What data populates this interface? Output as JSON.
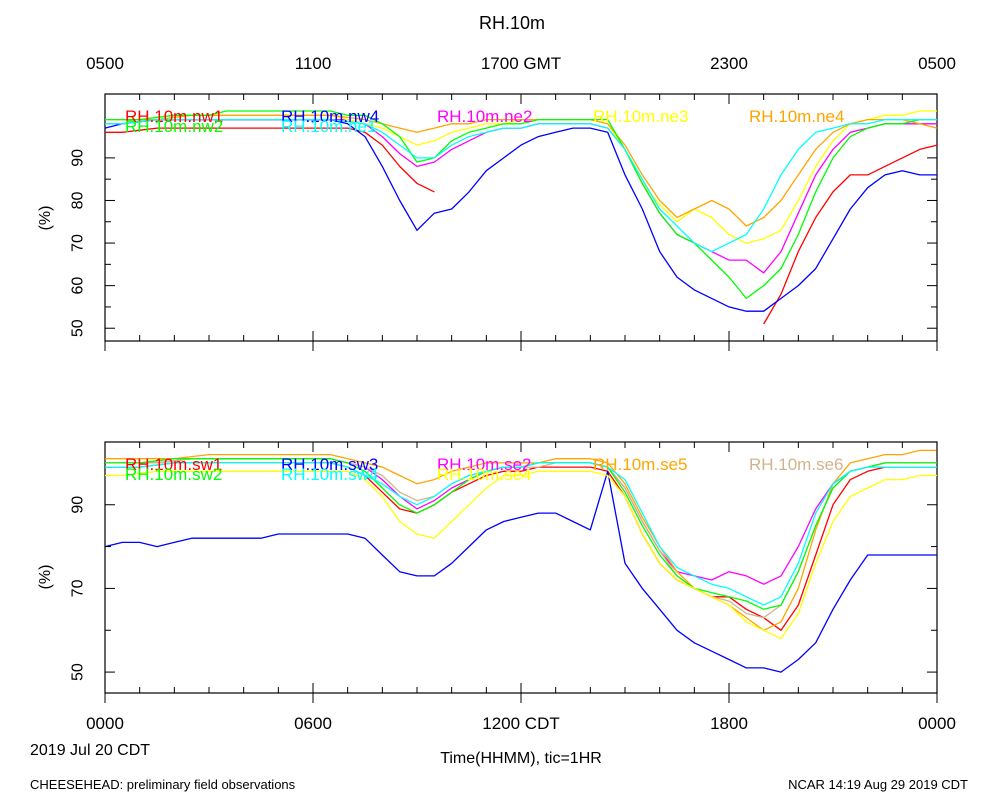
{
  "title": "RH.10m",
  "top_time_labels": [
    "0500",
    "1100",
    "1700 GMT",
    "2300",
    "0500"
  ],
  "bottom_time_labels": [
    "0000",
    "0600",
    "1200 CDT",
    "1800",
    "0000"
  ],
  "xlabel": "Time(HHMM), tic=1HR",
  "date_label": "2019 Jul 20 CDT",
  "footer_left": "CHEESEHEAD: preliminary field observations",
  "footer_right": "NCAR 14:19 Aug 29 2019 CDT",
  "chart_data": [
    {
      "type": "line",
      "panel": "top",
      "ylabel": "(%)",
      "x_unit": "hours since 0000 CDT",
      "xlim": [
        0,
        24
      ],
      "ylim": [
        47,
        105
      ],
      "yticks": [
        50,
        60,
        70,
        80,
        90
      ],
      "grid": false,
      "legend_placement": "top, inside plot",
      "x": [
        0,
        0.5,
        1,
        1.5,
        2,
        2.5,
        3,
        3.5,
        4,
        4.5,
        5,
        5.5,
        6,
        6.5,
        7,
        7.5,
        8,
        8.5,
        9,
        9.5,
        10,
        10.5,
        11,
        11.5,
        12,
        12.5,
        13,
        13.5,
        14,
        14.5,
        15,
        15.5,
        16,
        16.5,
        17,
        17.5,
        18,
        18.5,
        19,
        19.5,
        20,
        20.5,
        21,
        21.5,
        22,
        22.5,
        23,
        23.5,
        24
      ],
      "series": [
        {
          "name": "RH.10m.nw1",
          "color": "#ff0000",
          "legend_row": 0,
          "values": [
            96,
            96,
            96.5,
            97,
            97,
            97,
            97,
            97,
            97,
            97,
            97,
            97,
            97,
            97,
            97,
            96,
            93,
            88,
            84,
            82,
            null,
            null,
            null,
            null,
            null,
            null,
            null,
            null,
            null,
            null,
            null,
            null,
            null,
            null,
            null,
            null,
            null,
            null,
            51,
            58,
            68,
            76,
            82,
            86,
            86,
            88,
            90,
            92,
            93
          ]
        },
        {
          "name": "RH.10m.nw4",
          "color": "#0000ff",
          "legend_row": 0,
          "values": [
            97,
            98,
            98.5,
            99,
            99,
            99,
            99,
            99,
            99,
            99,
            99,
            99,
            99,
            99,
            98,
            95,
            88,
            80,
            73,
            77,
            78,
            82,
            87,
            90,
            93,
            95,
            96,
            97,
            97,
            96,
            86,
            78,
            68,
            62,
            59,
            57,
            55,
            54,
            54,
            57,
            60,
            64,
            71,
            78,
            83,
            86,
            87,
            86,
            86
          ]
        },
        {
          "name": "RH.10m.ne2",
          "color": "#ff00ff",
          "legend_row": 0,
          "values": [
            98,
            98,
            98.5,
            99,
            99,
            99,
            99,
            99,
            99,
            99,
            99,
            99,
            99,
            99,
            99,
            98,
            95,
            91,
            88,
            89,
            92,
            94,
            96,
            97,
            97,
            98,
            98,
            98,
            98,
            97,
            92,
            84,
            77,
            72,
            70,
            68,
            66,
            66,
            63,
            68,
            77,
            86,
            92,
            96,
            97,
            98,
            98,
            98,
            98
          ]
        },
        {
          "name": "RH.10m.ne3",
          "color": "#ffff00",
          "legend_row": 0,
          "values": [
            99,
            99,
            99,
            99.5,
            100,
            100,
            100,
            100,
            100,
            100,
            100,
            100,
            100,
            100,
            99,
            98,
            97,
            95,
            93,
            94,
            96,
            97,
            98,
            98,
            99,
            99,
            99,
            99,
            99,
            98,
            92,
            84,
            79,
            75,
            78,
            76,
            72,
            70,
            71,
            73,
            80,
            88,
            94,
            98,
            99,
            100,
            100,
            101,
            101
          ]
        },
        {
          "name": "RH.10m.ne4",
          "color": "#ffa500",
          "legend_row": 0,
          "values": [
            99,
            99,
            99,
            99,
            99.5,
            100,
            100,
            100,
            100,
            100,
            100,
            100,
            100,
            100,
            99.5,
            99,
            98,
            97,
            96,
            97,
            98,
            98,
            99,
            99,
            99,
            99,
            99,
            99,
            99,
            98,
            93,
            86,
            80,
            76,
            78,
            80,
            78,
            74,
            76,
            80,
            86,
            92,
            96,
            98,
            99,
            99,
            99,
            98,
            97
          ]
        },
        {
          "name": "RH.10m.nw2",
          "color": "#00ff00",
          "legend_row": 1,
          "values": [
            99,
            99,
            99,
            99.5,
            100,
            100,
            100,
            101,
            101,
            101,
            101,
            101,
            101,
            101,
            100,
            100,
            98,
            95,
            89,
            90,
            94,
            96,
            97,
            98,
            98,
            99,
            99,
            99,
            99,
            99,
            92,
            84,
            77,
            72,
            70,
            66,
            62,
            57,
            60,
            64,
            72,
            82,
            90,
            95,
            97,
            98,
            98,
            99,
            99
          ]
        },
        {
          "name": "RH.10m.ne1",
          "color": "#00ffff",
          "legend_row": 1,
          "values": [
            98,
            98,
            98.5,
            99,
            99,
            99,
            99,
            99,
            99,
            99,
            99,
            99,
            99,
            99,
            98.5,
            98,
            96,
            93,
            90,
            90,
            93,
            95,
            96,
            97,
            97,
            98,
            98,
            98,
            98,
            97,
            92,
            85,
            78,
            74,
            70,
            68,
            70,
            72,
            78,
            86,
            92,
            96,
            97,
            98,
            98,
            99,
            99,
            99,
            99
          ]
        }
      ]
    },
    {
      "type": "line",
      "panel": "bottom",
      "ylabel": "(%)",
      "x_unit": "hours since 0000 CDT",
      "xlim": [
        0,
        24
      ],
      "ylim": [
        45,
        105
      ],
      "yticks": [
        50,
        70,
        90
      ],
      "grid": false,
      "legend_placement": "top, inside plot",
      "x": [
        0,
        0.5,
        1,
        1.5,
        2,
        2.5,
        3,
        3.5,
        4,
        4.5,
        5,
        5.5,
        6,
        6.5,
        7,
        7.5,
        8,
        8.5,
        9,
        9.5,
        10,
        10.5,
        11,
        11.5,
        12,
        12.5,
        13,
        13.5,
        14,
        14.5,
        15,
        15.5,
        16,
        16.5,
        17,
        17.5,
        18,
        18.5,
        19,
        19.5,
        20,
        20.5,
        21,
        21.5,
        22,
        22.5,
        23,
        23.5,
        24
      ],
      "series": [
        {
          "name": "RH.10m.sw1",
          "color": "#ff0000",
          "legend_row": 0,
          "values": [
            99,
            99,
            99,
            99.5,
            100,
            100,
            100,
            100,
            100,
            100,
            100,
            100,
            100,
            100,
            99,
            97,
            93,
            89,
            88,
            90,
            93,
            95,
            97,
            98,
            98,
            99,
            99,
            99,
            99,
            98,
            92,
            83,
            76,
            72,
            70,
            68,
            68,
            65,
            63,
            60,
            66,
            78,
            90,
            96,
            98,
            99,
            99,
            99,
            99
          ]
        },
        {
          "name": "RH.10m.sw3",
          "color": "#0000ff",
          "legend_row": 0,
          "values": [
            80,
            81,
            81,
            80,
            81,
            82,
            82,
            82,
            82,
            82,
            83,
            83,
            83,
            83,
            83,
            82,
            78,
            74,
            73,
            73,
            76,
            80,
            84,
            86,
            87,
            88,
            88,
            86,
            84,
            98,
            76,
            70,
            65,
            60,
            57,
            55,
            53,
            51,
            51,
            50,
            53,
            57,
            65,
            72,
            78,
            78,
            78,
            78,
            78
          ]
        },
        {
          "name": "RH.10m.se2",
          "color": "#ff00ff",
          "legend_row": 0,
          "values": [
            100,
            100,
            100,
            100,
            100.5,
            101,
            101,
            101,
            101,
            101,
            101,
            101,
            101,
            101,
            100,
            99,
            96,
            92,
            89,
            91,
            94,
            96,
            98,
            99,
            99,
            100,
            100,
            100,
            100,
            99,
            94,
            86,
            79,
            74,
            73,
            72,
            74,
            73,
            71,
            73,
            80,
            89,
            95,
            98,
            99,
            100,
            100,
            100,
            100
          ]
        },
        {
          "name": "RH.10m.se5",
          "color": "#ffa500",
          "legend_row": 0,
          "values": [
            101,
            101,
            101,
            101,
            101,
            101.5,
            102,
            102,
            102,
            102,
            102,
            102,
            102,
            102,
            101,
            100,
            99,
            97,
            95,
            96,
            98,
            99,
            100,
            100,
            100,
            100,
            101,
            101,
            101,
            100,
            95,
            87,
            80,
            74,
            70,
            68,
            66,
            63,
            60,
            62,
            70,
            84,
            95,
            100,
            101,
            102,
            102,
            103,
            103
          ]
        },
        {
          "name": "RH.10m.se6",
          "color": "#d2b48c",
          "legend_row": 0,
          "values": [
            100,
            100,
            100,
            100,
            100.5,
            101,
            101,
            101,
            101,
            101,
            101,
            101,
            101,
            101,
            100,
            99,
            97,
            93,
            91,
            92,
            95,
            97,
            98,
            99,
            99,
            99,
            100,
            100,
            100,
            99,
            94,
            86,
            79,
            73,
            70,
            68,
            67,
            64,
            63,
            66,
            74,
            85,
            94,
            98,
            99,
            100,
            100,
            100,
            100
          ]
        },
        {
          "name": "RH.10m.sw2",
          "color": "#00ff00",
          "legend_row": 1,
          "values": [
            100,
            100,
            100,
            100.5,
            101,
            101,
            101,
            101,
            101,
            101,
            101,
            101,
            101,
            101,
            100,
            98,
            94,
            90,
            88,
            90,
            93,
            96,
            98,
            99,
            99,
            100,
            100,
            100,
            100,
            99,
            93,
            85,
            78,
            73,
            70,
            69,
            68,
            67,
            65,
            66,
            74,
            85,
            94,
            98,
            99,
            100,
            100,
            100,
            100
          ]
        },
        {
          "name": "RH.10m.sw4",
          "color": "#00ffff",
          "legend_row": 1,
          "values": [
            99,
            99,
            99,
            99.5,
            100,
            100,
            100,
            100,
            100,
            100,
            100,
            100,
            100,
            100,
            99,
            97,
            95,
            92,
            90,
            92,
            95,
            97,
            98,
            99,
            99,
            100,
            100,
            100,
            100,
            99,
            96,
            88,
            80,
            75,
            73,
            71,
            70,
            68,
            66,
            68,
            76,
            88,
            95,
            98,
            99,
            99,
            99,
            99,
            99
          ]
        },
        {
          "name": "RH.10m.se4",
          "color": "#ffff00",
          "legend_row": 1,
          "values": [
            97,
            97,
            97.5,
            98,
            98,
            98,
            98,
            98,
            98,
            98,
            98,
            98,
            98,
            98,
            98,
            96,
            92,
            86,
            83,
            82,
            86,
            90,
            94,
            97,
            97,
            98,
            98,
            98,
            98,
            97,
            92,
            83,
            76,
            72,
            70,
            68,
            66,
            62,
            60,
            58,
            64,
            76,
            86,
            92,
            94,
            96,
            96,
            97,
            97
          ]
        }
      ]
    }
  ]
}
